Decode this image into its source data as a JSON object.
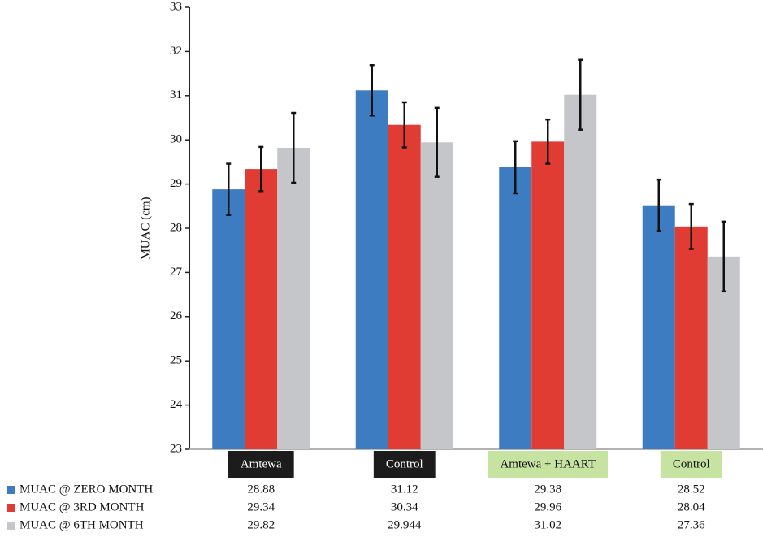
{
  "chart_data": {
    "type": "bar",
    "y_label": "MUAC (cm)",
    "categories": [
      "Amtewa",
      "Control",
      "Amtewa + HAART",
      "Control"
    ],
    "category_backgrounds": [
      "#1c1c1c",
      "#1c1c1c",
      "#c6e3a2",
      "#c6e3a2"
    ],
    "category_text_colors": [
      "#ffffff",
      "#ffffff",
      "#111111",
      "#111111"
    ],
    "series": [
      {
        "name": "MUAC @ ZERO MONTH",
        "color": "#3d7cc1",
        "values": [
          28.88,
          31.12,
          29.38,
          28.52
        ],
        "errors": [
          0.58,
          0.57,
          0.59,
          0.58
        ]
      },
      {
        "name": "MUAC @ 3RD MONTH",
        "color": "#e03c33",
        "values": [
          29.34,
          30.34,
          29.96,
          28.04
        ],
        "errors": [
          0.5,
          0.51,
          0.5,
          0.51
        ]
      },
      {
        "name": "MUAC @ 6TH MONTH",
        "color": "#c5c6ca",
        "values": [
          29.82,
          29.944,
          31.02,
          27.36
        ],
        "errors": [
          0.79,
          0.78,
          0.79,
          0.79
        ]
      }
    ],
    "ylim": [
      23,
      33
    ],
    "yticks": [
      23,
      24,
      25,
      26,
      27,
      28,
      29,
      30,
      31,
      32,
      33
    ]
  }
}
